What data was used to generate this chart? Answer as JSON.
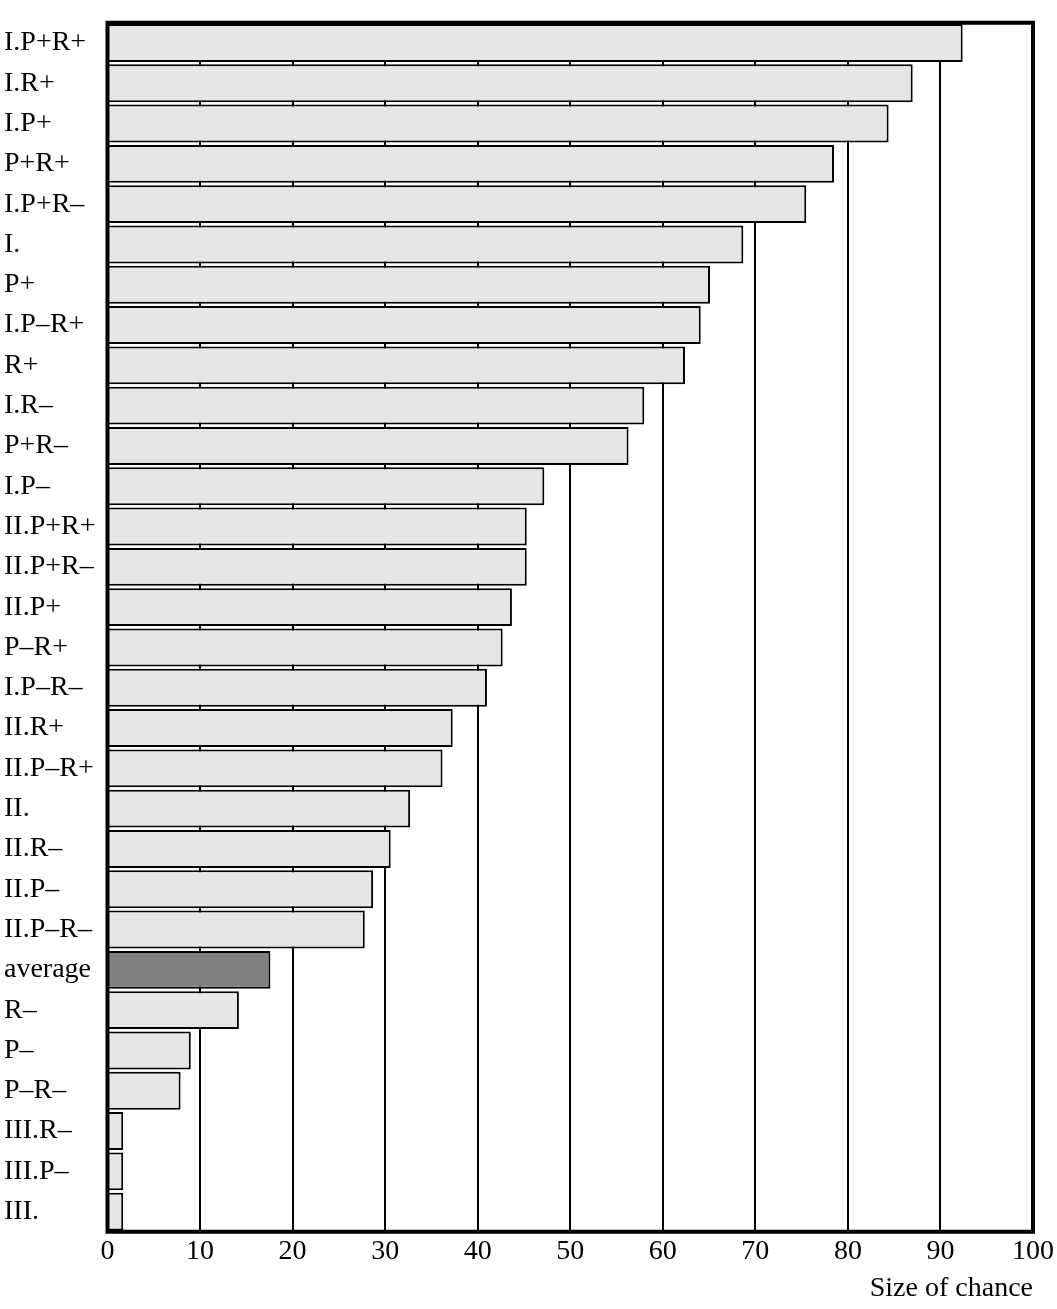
{
  "chart_data": {
    "type": "bar",
    "orientation": "horizontal",
    "xlabel": "Size of chance",
    "categories": [
      "I.P+R+",
      "I.R+",
      "I.P+",
      "P+R+",
      "I.P+R–",
      "I.",
      "P+",
      "I.P–R+",
      "R+",
      "I.R–",
      "P+R–",
      "I.P–",
      "II.P+R+",
      "II.P+R–",
      "II.P+",
      "P–R+",
      "I.P–R–",
      "II.R+",
      "II.P–R+",
      "II.",
      "II.R–",
      "II.P–",
      "II.P–R–",
      "average",
      "R–",
      "P–",
      "P–R–",
      "III.R–",
      "III.P–",
      "III."
    ],
    "values": [
      92.4,
      87.0,
      84.4,
      78.5,
      75.5,
      68.7,
      65.1,
      64.1,
      62.4,
      58.0,
      56.3,
      47.2,
      45.3,
      45.3,
      43.7,
      42.7,
      41.0,
      37.3,
      36.2,
      32.7,
      30.6,
      28.7,
      27.8,
      17.6,
      14.2,
      9.0,
      7.9,
      1.7,
      1.7,
      1.7
    ],
    "colors": [
      "#e6e6e6",
      "#e6e6e6",
      "#e6e6e6",
      "#e6e6e6",
      "#e6e6e6",
      "#e6e6e6",
      "#e6e6e6",
      "#e6e6e6",
      "#e6e6e6",
      "#e6e6e6",
      "#e6e6e6",
      "#e6e6e6",
      "#e6e6e6",
      "#e6e6e6",
      "#e6e6e6",
      "#e6e6e6",
      "#e6e6e6",
      "#e6e6e6",
      "#e6e6e6",
      "#e6e6e6",
      "#e6e6e6",
      "#e6e6e6",
      "#e6e6e6",
      "#808080",
      "#e6e6e6",
      "#e6e6e6",
      "#e6e6e6",
      "#e6e6e6",
      "#e6e6e6",
      "#e6e6e6"
    ],
    "xlim": [
      0,
      100
    ],
    "xticks": [
      0,
      10,
      20,
      30,
      40,
      50,
      60,
      70,
      80,
      90,
      100
    ],
    "grid": "x",
    "legend": false
  }
}
